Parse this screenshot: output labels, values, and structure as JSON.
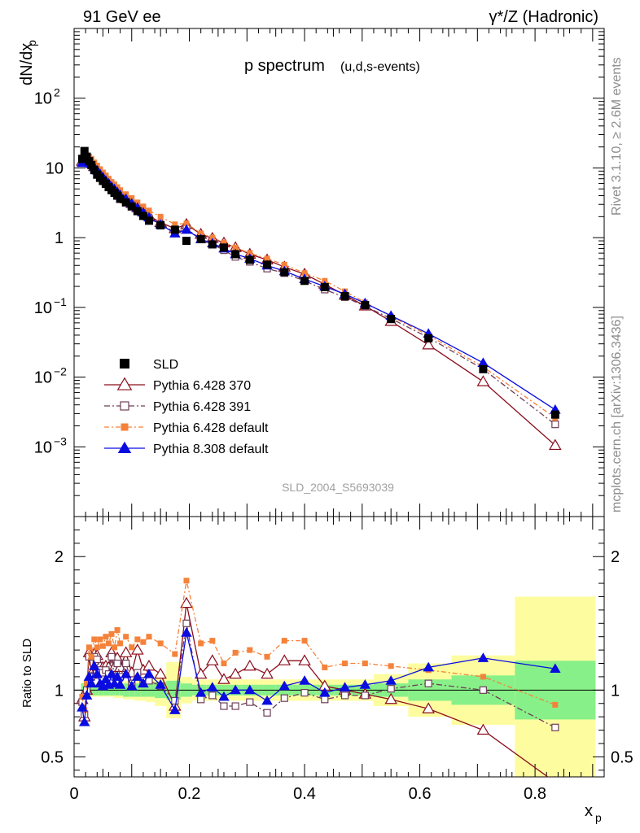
{
  "header": {
    "left": "91 GeV ee",
    "right": "γ*/Z (Hadronic)"
  },
  "side_labels": {
    "rivet": "Rivet 3.1.10, ≥ 2.6M events",
    "mcplots": "mcplots.cern.ch [arXiv:1306.3436]"
  },
  "plot_title": {
    "main": "p spectrum",
    "sub": "(u,d,s-events)"
  },
  "analysis_id": "SLD_2004_S5693039",
  "legend": [
    {
      "key": "sld",
      "label": "SLD"
    },
    {
      "key": "p370",
      "label": "Pythia 6.428 370"
    },
    {
      "key": "p391",
      "label": "Pythia 6.428 391"
    },
    {
      "key": "pdef",
      "label": "Pythia 6.428 default"
    },
    {
      "key": "p8",
      "label": "Pythia 8.308 default"
    }
  ],
  "chart_data": [
    {
      "type": "scatter",
      "panel": "main",
      "ylabel_main": "dN/dx",
      "ylabel_sub": "p",
      "ylog": true,
      "ylim": [
        0.0001,
        1000
      ],
      "xlim": [
        0,
        0.92
      ],
      "y_tick_labels": [
        {
          "v": 0.001,
          "base": "10",
          "exp": "−3"
        },
        {
          "v": 0.01,
          "base": "10",
          "exp": "−2"
        },
        {
          "v": 0.1,
          "base": "10",
          "exp": "−1"
        },
        {
          "v": 1,
          "base": "1",
          "exp": ""
        },
        {
          "v": 10,
          "base": "10",
          "exp": ""
        },
        {
          "v": 100,
          "base": "10",
          "exp": "2"
        }
      ],
      "x": [
        0.014,
        0.018,
        0.022,
        0.026,
        0.03,
        0.035,
        0.04,
        0.045,
        0.05,
        0.055,
        0.06,
        0.065,
        0.07,
        0.075,
        0.08,
        0.09,
        0.1,
        0.11,
        0.12,
        0.13,
        0.15,
        0.175,
        0.195,
        0.22,
        0.24,
        0.26,
        0.28,
        0.305,
        0.335,
        0.365,
        0.4,
        0.435,
        0.47,
        0.505,
        0.55,
        0.615,
        0.71,
        0.835
      ],
      "series": [
        {
          "key": "sld",
          "name": "SLD",
          "values": [
            13.5,
            17.5,
            14.5,
            12.5,
            11.0,
            9.3,
            8.0,
            7.2,
            6.5,
            5.9,
            5.3,
            4.8,
            4.4,
            4.0,
            3.6,
            3.2,
            2.8,
            2.4,
            2.05,
            1.75,
            1.5,
            1.3,
            0.9,
            0.95,
            0.8,
            0.72,
            0.58,
            0.48,
            0.41,
            0.32,
            0.24,
            0.195,
            0.145,
            0.108,
            0.068,
            0.036,
            0.013,
            0.0029
          ]
        },
        {
          "key": "p370",
          "name": "Pythia 6.428 370",
          "values": [
            12.5,
            14.0,
            14.5,
            13.0,
            11.8,
            10.5,
            9.5,
            8.5,
            7.6,
            6.8,
            6.2,
            5.6,
            5.1,
            4.6,
            4.2,
            3.6,
            3.1,
            2.7,
            2.35,
            2.05,
            1.65,
            1.35,
            1.55,
            1.12,
            0.98,
            0.84,
            0.72,
            0.58,
            0.48,
            0.38,
            0.3,
            0.215,
            0.15,
            0.105,
            0.063,
            0.029,
            0.0086,
            0.00105
          ]
        },
        {
          "key": "p391",
          "name": "Pythia 6.428 391",
          "values": [
            12.3,
            14.5,
            14.0,
            12.8,
            11.5,
            10.2,
            9.2,
            8.2,
            7.3,
            6.6,
            5.9,
            5.3,
            4.9,
            4.4,
            4.0,
            3.5,
            3.0,
            2.6,
            2.2,
            1.9,
            1.55,
            1.2,
            1.35,
            0.95,
            0.8,
            0.66,
            0.53,
            0.45,
            0.36,
            0.31,
            0.24,
            0.18,
            0.14,
            0.104,
            0.069,
            0.037,
            0.013,
            0.0021
          ]
        },
        {
          "key": "pdef",
          "name": "Pythia 6.428 default",
          "values": [
            12.4,
            14.2,
            15.0,
            14.5,
            13.5,
            12.0,
            10.8,
            9.6,
            8.6,
            7.8,
            7.0,
            6.3,
            5.8,
            5.3,
            4.8,
            4.2,
            3.7,
            3.2,
            2.8,
            2.45,
            2.0,
            1.55,
            1.6,
            1.15,
            1.0,
            0.85,
            0.72,
            0.6,
            0.5,
            0.41,
            0.31,
            0.24,
            0.17,
            0.118,
            0.074,
            0.04,
            0.014,
            0.0026
          ]
        },
        {
          "key": "p8",
          "name": "Pythia 8.308 default",
          "values": [
            11.8,
            12.0,
            13.0,
            12.3,
            11.4,
            10.3,
            9.2,
            8.2,
            7.4,
            6.6,
            6.0,
            5.4,
            5.0,
            4.5,
            4.1,
            3.6,
            3.1,
            2.7,
            2.3,
            1.95,
            1.55,
            1.15,
            1.3,
            0.95,
            0.83,
            0.7,
            0.58,
            0.5,
            0.4,
            0.33,
            0.255,
            0.2,
            0.155,
            0.115,
            0.076,
            0.042,
            0.016,
            0.0034
          ]
        }
      ]
    },
    {
      "type": "line",
      "panel": "ratio",
      "ylabel": "Ratio to SLD",
      "xlabel_main": "x",
      "xlabel_sub": "p",
      "ylim": [
        0.35,
        2.3
      ],
      "xlim": [
        0,
        0.92
      ],
      "y_tick_labels": [
        "0.5",
        "1",
        "2"
      ],
      "y_ticks": [
        0.5,
        1,
        2
      ],
      "x_tick_labels": [
        "0",
        "0.2",
        "0.4",
        "0.6",
        "0.8"
      ],
      "x_ticks": [
        0,
        0.2,
        0.4,
        0.6,
        0.8
      ],
      "bins": [
        [
          0.012,
          0.016
        ],
        [
          0.016,
          0.02
        ],
        [
          0.02,
          0.024
        ],
        [
          0.024,
          0.028
        ],
        [
          0.028,
          0.032
        ],
        [
          0.032,
          0.038
        ],
        [
          0.038,
          0.042
        ],
        [
          0.042,
          0.048
        ],
        [
          0.048,
          0.052
        ],
        [
          0.052,
          0.058
        ],
        [
          0.058,
          0.062
        ],
        [
          0.062,
          0.068
        ],
        [
          0.068,
          0.072
        ],
        [
          0.072,
          0.078
        ],
        [
          0.078,
          0.085
        ],
        [
          0.085,
          0.095
        ],
        [
          0.095,
          0.105
        ],
        [
          0.105,
          0.115
        ],
        [
          0.115,
          0.125
        ],
        [
          0.125,
          0.14
        ],
        [
          0.14,
          0.16
        ],
        [
          0.16,
          0.185
        ],
        [
          0.185,
          0.205
        ],
        [
          0.205,
          0.23
        ],
        [
          0.23,
          0.25
        ],
        [
          0.25,
          0.27
        ],
        [
          0.27,
          0.29
        ],
        [
          0.29,
          0.32
        ],
        [
          0.32,
          0.35
        ],
        [
          0.35,
          0.38
        ],
        [
          0.38,
          0.42
        ],
        [
          0.42,
          0.45
        ],
        [
          0.45,
          0.49
        ],
        [
          0.49,
          0.52
        ],
        [
          0.52,
          0.58
        ],
        [
          0.58,
          0.655
        ],
        [
          0.655,
          0.765
        ],
        [
          0.765,
          0.905
        ]
      ],
      "band_inner": [
        0.05,
        0.05,
        0.04,
        0.04,
        0.04,
        0.04,
        0.04,
        0.04,
        0.04,
        0.04,
        0.04,
        0.04,
        0.04,
        0.04,
        0.04,
        0.05,
        0.05,
        0.05,
        0.05,
        0.05,
        0.06,
        0.07,
        0.05,
        0.04,
        0.04,
        0.04,
        0.04,
        0.04,
        0.04,
        0.04,
        0.04,
        0.04,
        0.04,
        0.04,
        0.05,
        0.08,
        0.11,
        0.22
      ],
      "band_outer": [
        0.06,
        0.06,
        0.05,
        0.05,
        0.05,
        0.05,
        0.05,
        0.05,
        0.05,
        0.05,
        0.05,
        0.05,
        0.06,
        0.06,
        0.06,
        0.07,
        0.07,
        0.08,
        0.08,
        0.09,
        0.12,
        0.21,
        0.1,
        0.08,
        0.08,
        0.08,
        0.08,
        0.08,
        0.08,
        0.08,
        0.08,
        0.08,
        0.08,
        0.08,
        0.12,
        0.2,
        0.26,
        0.7
      ],
      "x": [
        0.014,
        0.018,
        0.022,
        0.026,
        0.03,
        0.035,
        0.04,
        0.045,
        0.05,
        0.055,
        0.06,
        0.065,
        0.07,
        0.075,
        0.08,
        0.09,
        0.1,
        0.11,
        0.12,
        0.13,
        0.15,
        0.175,
        0.195,
        0.22,
        0.24,
        0.26,
        0.28,
        0.305,
        0.335,
        0.365,
        0.4,
        0.435,
        0.47,
        0.505,
        0.55,
        0.615,
        0.71,
        0.835
      ],
      "series": [
        {
          "key": "p370",
          "name": "Pythia 6.428 370",
          "values": [
            0.93,
            0.8,
            1.0,
            1.28,
            1.12,
            1.27,
            1.26,
            1.18,
            1.17,
            1.18,
            1.17,
            1.28,
            1.17,
            1.24,
            1.17,
            1.28,
            1.13,
            1.3,
            1.15,
            1.18,
            1.12,
            0.88,
            1.65,
            1.12,
            1.22,
            1.08,
            1.12,
            1.18,
            1.12,
            1.22,
            1.22,
            1.03,
            1.0,
            0.97,
            0.93,
            0.86,
            0.7,
            0.31
          ]
        },
        {
          "key": "p391",
          "name": "Pythia 6.428 391",
          "values": [
            0.91,
            0.82,
            1.0,
            1.25,
            1.1,
            1.25,
            1.23,
            1.15,
            1.13,
            1.15,
            1.12,
            1.25,
            1.1,
            1.2,
            1.1,
            1.2,
            1.05,
            1.13,
            1.07,
            1.07,
            1.03,
            0.92,
            1.5,
            0.93,
            0.96,
            0.88,
            0.88,
            0.91,
            0.83,
            0.94,
            0.98,
            0.93,
            0.96,
            0.96,
            1.01,
            1.05,
            1.0,
            0.72
          ]
        },
        {
          "key": "pdef",
          "name": "Pythia 6.428 default",
          "values": [
            0.95,
            0.85,
            1.05,
            1.32,
            1.25,
            1.38,
            1.32,
            1.38,
            1.33,
            1.4,
            1.35,
            1.42,
            1.32,
            1.45,
            1.35,
            1.4,
            1.32,
            1.38,
            1.36,
            1.4,
            1.35,
            1.27,
            1.82,
            1.35,
            1.37,
            1.2,
            1.28,
            1.3,
            1.25,
            1.37,
            1.37,
            1.17,
            1.2,
            1.2,
            1.18,
            1.15,
            1.1,
            0.89
          ]
        },
        {
          "key": "p8",
          "name": "Pythia 8.308 default",
          "values": [
            0.87,
            0.76,
            0.96,
            1.1,
            1.05,
            1.18,
            1.12,
            1.05,
            1.03,
            1.08,
            1.04,
            1.12,
            1.05,
            1.1,
            1.04,
            1.12,
            1.03,
            1.1,
            1.05,
            1.12,
            1.04,
            0.85,
            1.43,
            0.98,
            1.02,
            0.95,
            1.0,
            1.0,
            0.92,
            1.03,
            1.07,
            0.98,
            1.02,
            1.04,
            1.07,
            1.17,
            1.24,
            1.16
          ]
        }
      ]
    }
  ],
  "styles": {
    "sld": {
      "color": "#000000",
      "marker": "square-filled",
      "dash": ""
    },
    "p370": {
      "color": "#8b0d1c",
      "marker": "triangle-open",
      "dash": ""
    },
    "p391": {
      "color": "#6e3e56",
      "marker": "square-open",
      "dash": "7,3,2,3"
    },
    "pdef": {
      "color": "#f5823a",
      "marker": "square-filled-small",
      "dash": "6,3,2,3"
    },
    "p8": {
      "color": "#0a0ce0",
      "marker": "triangle-filled",
      "dash": ""
    },
    "band_inner_color": "#88f088",
    "band_outer_color": "#fdfda0"
  }
}
